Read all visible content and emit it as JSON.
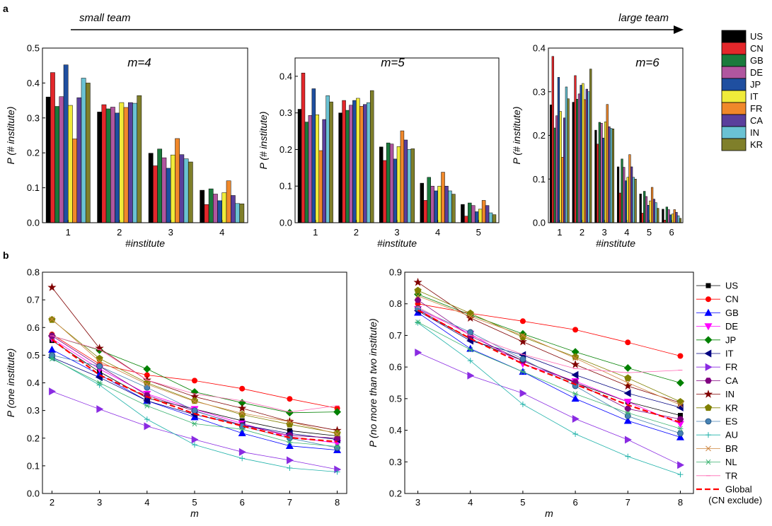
{
  "panel_a_label": "a",
  "panel_b_label": "b",
  "team_arrow": {
    "left": "small team",
    "right": "large team"
  },
  "colors": {
    "US": "#000000",
    "CN": "#e3272b",
    "GB": "#1a7a3c",
    "DE": "#b0569f",
    "JP": "#1f4fa0",
    "IT": "#f0eb3a",
    "FR": "#f0882a",
    "CA": "#5a3f9c",
    "IN": "#6ac2d3",
    "KR": "#7f7f2a"
  },
  "chart_data": [
    {
      "type": "bar",
      "title": "m=4",
      "xlabel": "#institute",
      "ylabel": "P (# institute)",
      "categories": [
        "1",
        "2",
        "3",
        "4"
      ],
      "ylim": [
        0,
        0.5
      ],
      "yticks": [
        "0.0",
        "0.1",
        "0.2",
        "0.3",
        "0.4",
        "0.5"
      ],
      "series": [
        {
          "name": "US",
          "values": [
            0.36,
            0.317,
            0.199,
            0.093
          ]
        },
        {
          "name": "CN",
          "values": [
            0.43,
            0.338,
            0.163,
            0.052
          ]
        },
        {
          "name": "GB",
          "values": [
            0.333,
            0.326,
            0.211,
            0.097
          ]
        },
        {
          "name": "DE",
          "values": [
            0.361,
            0.331,
            0.186,
            0.082
          ]
        },
        {
          "name": "JP",
          "values": [
            0.452,
            0.314,
            0.156,
            0.063
          ]
        },
        {
          "name": "IT",
          "values": [
            0.336,
            0.344,
            0.194,
            0.086
          ]
        },
        {
          "name": "FR",
          "values": [
            0.24,
            0.33,
            0.241,
            0.12
          ]
        },
        {
          "name": "CA",
          "values": [
            0.358,
            0.344,
            0.195,
            0.078
          ]
        },
        {
          "name": "IN",
          "values": [
            0.414,
            0.342,
            0.183,
            0.055
          ]
        },
        {
          "name": "KR",
          "values": [
            0.4,
            0.364,
            0.174,
            0.054
          ]
        }
      ]
    },
    {
      "type": "bar",
      "title": "m=5",
      "xlabel": "#institute",
      "ylabel": "P (# institute)",
      "categories": [
        "1",
        "2",
        "3",
        "4",
        "5"
      ],
      "ylim": [
        0,
        0.45
      ],
      "yticks": [
        "0.0",
        "0.1",
        "0.2",
        "0.3",
        "0.4"
      ],
      "series": [
        {
          "name": "US",
          "values": [
            0.31,
            0.3,
            0.207,
            0.108,
            0.05
          ]
        },
        {
          "name": "CN",
          "values": [
            0.409,
            0.334,
            0.17,
            0.061,
            0.018
          ]
        },
        {
          "name": "GB",
          "values": [
            0.275,
            0.307,
            0.218,
            0.124,
            0.054
          ]
        },
        {
          "name": "DE",
          "values": [
            0.293,
            0.321,
            0.215,
            0.1,
            0.047
          ]
        },
        {
          "name": "JP",
          "values": [
            0.366,
            0.334,
            0.174,
            0.087,
            0.03
          ]
        },
        {
          "name": "IT",
          "values": [
            0.295,
            0.34,
            0.208,
            0.1,
            0.037
          ]
        },
        {
          "name": "FR",
          "values": [
            0.197,
            0.318,
            0.251,
            0.138,
            0.061
          ]
        },
        {
          "name": "CA",
          "values": [
            0.282,
            0.323,
            0.226,
            0.1,
            0.047
          ]
        },
        {
          "name": "IN",
          "values": [
            0.347,
            0.328,
            0.2,
            0.087,
            0.027
          ]
        },
        {
          "name": "KR",
          "values": [
            0.33,
            0.361,
            0.202,
            0.078,
            0.022
          ]
        }
      ]
    },
    {
      "type": "bar",
      "title": "m=6",
      "xlabel": "#institute",
      "ylabel": "P (# institute)",
      "categories": [
        "1",
        "2",
        "3",
        "4",
        "5",
        "6"
      ],
      "ylim": [
        0,
        0.4
      ],
      "yticks": [
        "0.0",
        "0.1",
        "0.2",
        "0.3",
        "0.4"
      ],
      "series": [
        {
          "name": "US",
          "values": [
            0.27,
            0.276,
            0.212,
            0.128,
            0.066,
            0.031
          ]
        },
        {
          "name": "CN",
          "values": [
            0.381,
            0.337,
            0.18,
            0.068,
            0.022,
            0.006
          ]
        },
        {
          "name": "GB",
          "values": [
            0.217,
            0.283,
            0.23,
            0.146,
            0.072,
            0.036
          ]
        },
        {
          "name": "DE",
          "values": [
            0.245,
            0.295,
            0.228,
            0.127,
            0.06,
            0.03
          ]
        },
        {
          "name": "JP",
          "values": [
            0.333,
            0.315,
            0.194,
            0.096,
            0.04,
            0.018
          ]
        },
        {
          "name": "IT",
          "values": [
            0.255,
            0.319,
            0.231,
            0.104,
            0.05,
            0.02
          ]
        },
        {
          "name": "FR",
          "values": [
            0.15,
            0.282,
            0.271,
            0.156,
            0.081,
            0.03
          ]
        },
        {
          "name": "CA",
          "values": [
            0.24,
            0.306,
            0.22,
            0.128,
            0.054,
            0.024
          ]
        },
        {
          "name": "IN",
          "values": [
            0.311,
            0.3,
            0.216,
            0.104,
            0.046,
            0.016
          ]
        },
        {
          "name": "KR",
          "values": [
            0.284,
            0.352,
            0.215,
            0.1,
            0.033,
            0.01
          ]
        }
      ]
    },
    {
      "type": "line",
      "xlabel": "m",
      "ylabel": "P (one institute)",
      "x": [
        2,
        3,
        4,
        5,
        6,
        7,
        8
      ],
      "ylim": [
        0,
        0.8
      ],
      "yticks": [
        "0.0",
        "0.1",
        "0.2",
        "0.3",
        "0.4",
        "0.5",
        "0.6",
        "0.7",
        "0.8"
      ],
      "series": [
        {
          "name": "US",
          "values": [
            0.553,
            0.44,
            0.345,
            0.305,
            0.263,
            0.227,
            0.208
          ]
        },
        {
          "name": "CN",
          "values": [
            0.575,
            0.468,
            0.428,
            0.408,
            0.379,
            0.342,
            0.308
          ]
        },
        {
          "name": "GB",
          "values": [
            0.52,
            0.43,
            0.335,
            0.276,
            0.218,
            0.172,
            0.157
          ]
        },
        {
          "name": "DE",
          "values": [
            0.56,
            0.45,
            0.36,
            0.305,
            0.253,
            0.205,
            0.182
          ]
        },
        {
          "name": "JP",
          "values": [
            0.57,
            0.518,
            0.45,
            0.367,
            0.328,
            0.292,
            0.295
          ]
        },
        {
          "name": "IT",
          "values": [
            0.492,
            0.42,
            0.335,
            0.285,
            0.248,
            0.217,
            0.195
          ]
        },
        {
          "name": "FR",
          "values": [
            0.369,
            0.305,
            0.243,
            0.195,
            0.15,
            0.12,
            0.087
          ]
        },
        {
          "name": "CA",
          "values": [
            0.57,
            0.46,
            0.355,
            0.298,
            0.247,
            0.21,
            0.2
          ]
        },
        {
          "name": "IN",
          "values": [
            0.745,
            0.525,
            0.41,
            0.35,
            0.308,
            0.26,
            0.228
          ]
        },
        {
          "name": "KR",
          "values": [
            0.628,
            0.488,
            0.4,
            0.335,
            0.285,
            0.25,
            0.218
          ]
        },
        {
          "name": "ES",
          "values": [
            0.5,
            0.46,
            0.383,
            0.3,
            0.243,
            0.2,
            0.165
          ]
        },
        {
          "name": "AU",
          "values": [
            0.49,
            0.392,
            0.268,
            0.176,
            0.127,
            0.092,
            0.078
          ]
        },
        {
          "name": "BR",
          "values": [
            0.63,
            0.478,
            0.395,
            0.333,
            0.29,
            0.26,
            0.215
          ]
        },
        {
          "name": "NL",
          "values": [
            0.487,
            0.4,
            0.317,
            0.252,
            0.232,
            0.185,
            0.17
          ]
        },
        {
          "name": "TR",
          "values": [
            0.57,
            0.52,
            0.41,
            0.36,
            0.335,
            0.295,
            0.317
          ]
        },
        {
          "name": "Global",
          "values": [
            0.557,
            0.428,
            0.35,
            0.288,
            0.244,
            0.202,
            0.187
          ]
        }
      ]
    },
    {
      "type": "line",
      "xlabel": "m",
      "ylabel": "P (no more than two institute)",
      "x": [
        3,
        4,
        5,
        6,
        7,
        8
      ],
      "ylim": [
        0.2,
        0.9
      ],
      "yticks": [
        "0.2",
        "0.3",
        "0.4",
        "0.5",
        "0.6",
        "0.7",
        "0.8",
        "0.9"
      ],
      "series": [
        {
          "name": "US",
          "values": [
            0.782,
            0.688,
            0.62,
            0.55,
            0.49,
            0.447
          ]
        },
        {
          "name": "CN",
          "values": [
            0.8,
            0.77,
            0.745,
            0.718,
            0.678,
            0.635
          ]
        },
        {
          "name": "GB",
          "values": [
            0.772,
            0.658,
            0.585,
            0.5,
            0.43,
            0.378
          ]
        },
        {
          "name": "DE",
          "values": [
            0.783,
            0.705,
            0.61,
            0.555,
            0.49,
            0.42
          ]
        },
        {
          "name": "JP",
          "values": [
            0.83,
            0.765,
            0.705,
            0.648,
            0.597,
            0.55
          ]
        },
        {
          "name": "IT",
          "values": [
            0.778,
            0.683,
            0.638,
            0.575,
            0.517,
            0.472
          ]
        },
        {
          "name": "FR",
          "values": [
            0.646,
            0.573,
            0.517,
            0.436,
            0.37,
            0.29
          ]
        },
        {
          "name": "CA",
          "values": [
            0.812,
            0.698,
            0.62,
            0.552,
            0.468,
            0.435
          ]
        },
        {
          "name": "IN",
          "values": [
            0.868,
            0.755,
            0.68,
            0.608,
            0.54,
            0.487
          ]
        },
        {
          "name": "KR",
          "values": [
            0.842,
            0.77,
            0.695,
            0.632,
            0.565,
            0.49
          ]
        },
        {
          "name": "ES",
          "values": [
            0.785,
            0.71,
            0.625,
            0.54,
            0.445,
            0.39
          ]
        },
        {
          "name": "AU",
          "values": [
            0.74,
            0.62,
            0.482,
            0.388,
            0.317,
            0.26
          ]
        },
        {
          "name": "BR",
          "values": [
            0.825,
            0.76,
            0.7,
            0.628,
            0.55,
            0.48
          ]
        },
        {
          "name": "NL",
          "values": [
            0.742,
            0.655,
            0.585,
            0.515,
            0.455,
            0.405
          ]
        },
        {
          "name": "TR",
          "values": [
            0.79,
            0.7,
            0.64,
            0.595,
            0.582,
            0.59
          ]
        },
        {
          "name": "Global",
          "values": [
            0.78,
            0.69,
            0.61,
            0.545,
            0.48,
            0.425
          ]
        }
      ]
    }
  ],
  "line_styles": [
    {
      "name": "US",
      "color": "#000000",
      "marker": "square"
    },
    {
      "name": "CN",
      "color": "#ff0000",
      "marker": "circle"
    },
    {
      "name": "GB",
      "color": "#0000ff",
      "marker": "triangle-up"
    },
    {
      "name": "DE",
      "color": "#ff00ff",
      "marker": "triangle-down"
    },
    {
      "name": "JP",
      "color": "#008000",
      "marker": "diamond"
    },
    {
      "name": "IT",
      "color": "#000080",
      "marker": "triangle-left"
    },
    {
      "name": "FR",
      "color": "#8a2be2",
      "marker": "triangle-right"
    },
    {
      "name": "CA",
      "color": "#800080",
      "marker": "hexagon"
    },
    {
      "name": "IN",
      "color": "#800000",
      "marker": "star"
    },
    {
      "name": "KR",
      "color": "#808000",
      "marker": "pentagon"
    },
    {
      "name": "ES",
      "color": "#4682b4",
      "marker": "sphere"
    },
    {
      "name": "AU",
      "color": "#20b2aa",
      "marker": "plus"
    },
    {
      "name": "BR",
      "color": "#cd853f",
      "marker": "x"
    },
    {
      "name": "NL",
      "color": "#3cb371",
      "marker": "asterisk"
    },
    {
      "name": "TR",
      "color": "#ff69b4",
      "marker": "dash"
    },
    {
      "name": "Global",
      "color": "#ff0000",
      "marker": "none",
      "dash": true
    }
  ],
  "line_legend_global_note": "(CN exclude)"
}
